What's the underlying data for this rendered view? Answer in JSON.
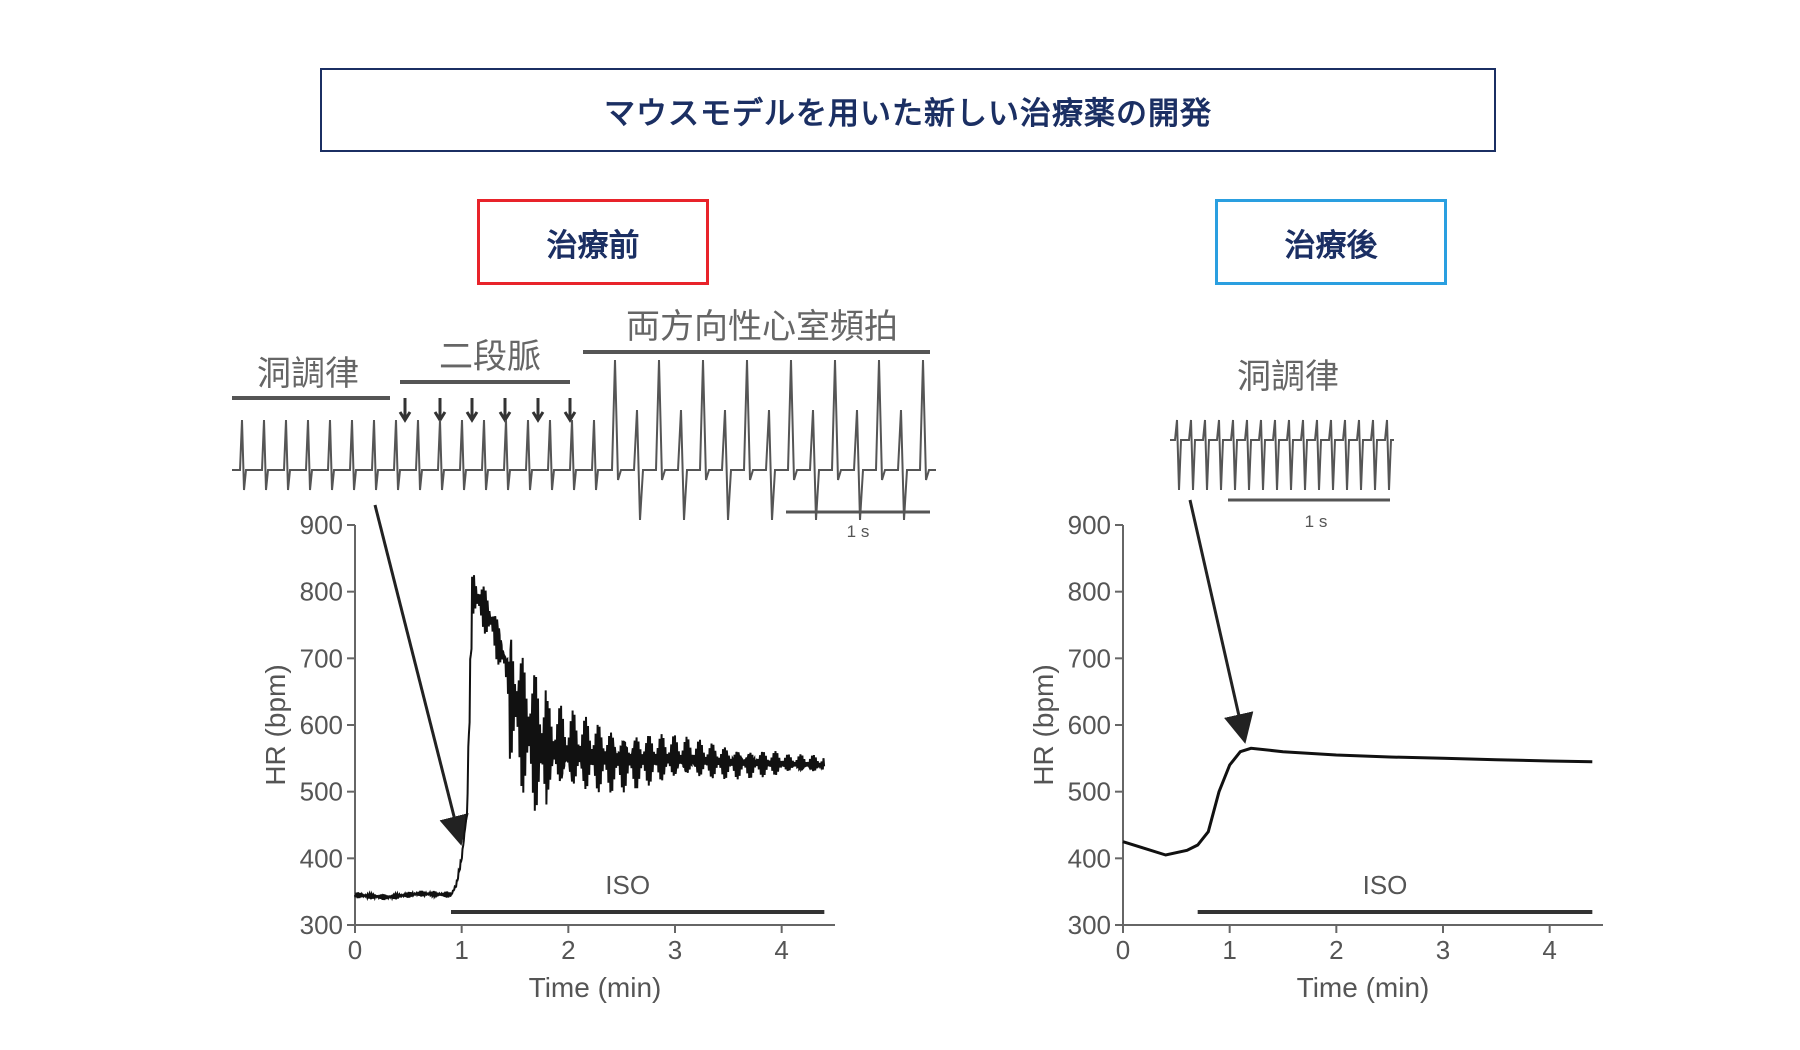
{
  "header": {
    "title": "マウスモデルを用いた新しい治療薬の開発"
  },
  "panels": {
    "before": {
      "label": "治療前",
      "border_color": "#e8232a"
    },
    "after": {
      "label": "治療後",
      "border_color": "#2a9fe0"
    }
  },
  "annotations": {
    "sinus": "洞調律",
    "bigeminy": "二段脈",
    "bvt": "両方向性心室頻拍",
    "scale": "1 s",
    "iso": "ISO"
  },
  "chart_data": [
    {
      "type": "line",
      "panel": "治療前",
      "xlabel": "Time (min)",
      "ylabel": "HR (bpm)",
      "xlim": [
        0,
        4.5
      ],
      "ylim": [
        300,
        900
      ],
      "xticks": [
        0,
        1,
        2,
        3,
        4
      ],
      "yticks": [
        300,
        400,
        500,
        600,
        700,
        800,
        900
      ],
      "series": [
        {
          "x": [
            0,
            0.3,
            0.6,
            0.9,
            0.95,
            1.0,
            1.05,
            1.1,
            1.2,
            1.3,
            1.4,
            1.5,
            1.6,
            1.7,
            1.8,
            2.0,
            2.5,
            3.0,
            3.5,
            4.0,
            4.4
          ],
          "y": [
            345,
            342,
            347,
            345,
            360,
            400,
            470,
            800,
            780,
            750,
            700,
            640,
            600,
            570,
            560,
            555,
            550,
            548,
            545,
            542,
            540
          ]
        }
      ],
      "iso_bar": [
        0.9,
        4.4
      ],
      "annotations": [
        "洞調律",
        "二段脈",
        "両方向性心室頻拍",
        "1 s",
        "ISO"
      ]
    },
    {
      "type": "line",
      "panel": "治療後",
      "xlabel": "Time (min)",
      "ylabel": "HR (bpm)",
      "xlim": [
        0,
        4.5
      ],
      "ylim": [
        300,
        900
      ],
      "xticks": [
        0,
        1,
        2,
        3,
        4
      ],
      "yticks": [
        300,
        400,
        500,
        600,
        700,
        800,
        900
      ],
      "series": [
        {
          "x": [
            0,
            0.2,
            0.4,
            0.6,
            0.7,
            0.8,
            0.9,
            1.0,
            1.1,
            1.2,
            1.5,
            2.0,
            2.5,
            3.0,
            3.5,
            4.0,
            4.4
          ],
          "y": [
            425,
            415,
            405,
            412,
            420,
            440,
            500,
            540,
            560,
            565,
            560,
            555,
            552,
            550,
            548,
            546,
            545
          ]
        }
      ],
      "iso_bar": [
        0.7,
        4.4
      ],
      "annotations": [
        "洞調律",
        "1 s",
        "ISO"
      ]
    }
  ]
}
